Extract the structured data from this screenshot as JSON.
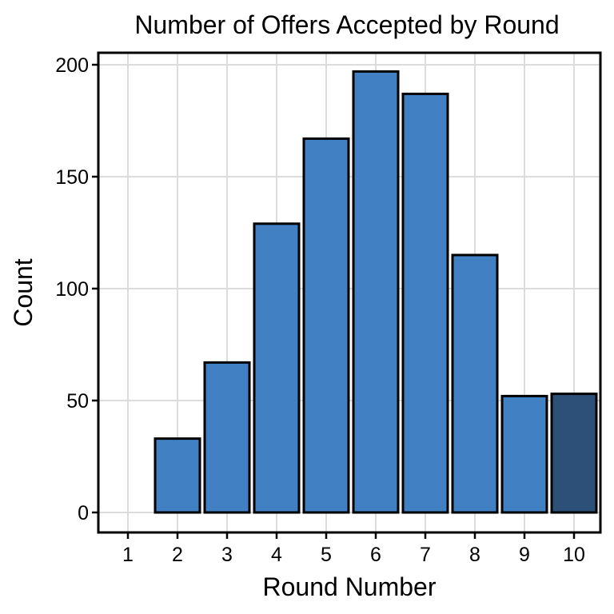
{
  "chart_data": {
    "type": "bar",
    "title": "Number of Offers Accepted by Round",
    "xlabel": "Round Number",
    "ylabel": "Count",
    "categories": [
      "1",
      "2",
      "3",
      "4",
      "5",
      "6",
      "7",
      "8",
      "9",
      "10"
    ],
    "values": [
      0,
      33,
      67,
      129,
      167,
      197,
      187,
      115,
      52,
      53
    ],
    "ylim": [
      0,
      200
    ],
    "yticks": [
      0,
      50,
      100,
      150,
      200
    ],
    "grid": true,
    "legend": "none",
    "colors": {
      "bar": "#4180c2",
      "highlight": "#2d5079",
      "highlight_category": "10",
      "outline": "#000000",
      "grid": "#dcdcdc"
    }
  }
}
